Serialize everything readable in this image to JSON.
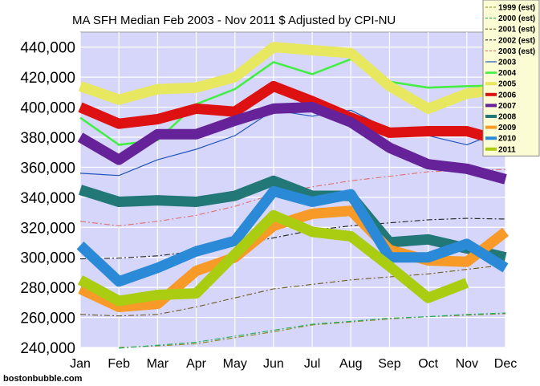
{
  "chart_data": {
    "type": "line",
    "title": "MA SFH Median Feb 2003 - Nov 2011 $ Adjusted by CPI-NU",
    "source": "bostonbubble.com",
    "categories": [
      "Jan",
      "Feb",
      "Mar",
      "Apr",
      "May",
      "Jun",
      "Jul",
      "Aug",
      "Sep",
      "Oct",
      "Nov",
      "Dec"
    ],
    "y_tick_labels": [
      "240,000",
      "260,000",
      "280,000",
      "300,000",
      "320,000",
      "340,000",
      "360,000",
      "380,000",
      "400,000",
      "420,000",
      "440,000"
    ],
    "ylim": [
      240000,
      450000
    ],
    "grid": true,
    "legend_position": "top-right",
    "series": [
      {
        "name": "1999 (est)",
        "color": "#8a8a1a",
        "style": "dash-dot-thin",
        "values": [
          null,
          240000,
          241000,
          242500,
          246500,
          250500,
          255000,
          257000,
          259000,
          260500,
          261500,
          262500
        ]
      },
      {
        "name": "2000 (est)",
        "color": "#20b060",
        "style": "dash-dot-thin",
        "values": [
          null,
          239500,
          241500,
          243500,
          247500,
          251500,
          255500,
          257500,
          259500,
          260500,
          262000,
          263000
        ]
      },
      {
        "name": "2001 (est)",
        "color": "#6b5a20",
        "style": "dash-dot-thin",
        "values": [
          262000,
          261000,
          262000,
          267000,
          273000,
          279000,
          282000,
          285000,
          287000,
          289000,
          292000,
          295000
        ]
      },
      {
        "name": "2002 (est)",
        "color": "#222222",
        "style": "dash-dot-thin",
        "values": [
          299000,
          299500,
          301000,
          304000,
          308000,
          313000,
          318000,
          321000,
          323000,
          325000,
          326000,
          325500
        ]
      },
      {
        "name": "2003 (est)",
        "color": "#e07070",
        "style": "dash-dot-thin",
        "values": [
          324000,
          321000,
          324000,
          328000,
          334000,
          342000,
          347000,
          351000,
          354000,
          357000,
          358000,
          358500
        ]
      },
      {
        "name": "2003",
        "color": "#2255bb",
        "style": "thin",
        "values": [
          356000,
          354500,
          365000,
          372000,
          381000,
          398000,
          394000,
          398000,
          385000,
          381000,
          375000,
          385000
        ]
      },
      {
        "name": "2004",
        "color": "#44ee44",
        "style": "medium",
        "values": [
          393000,
          375000,
          378000,
          402000,
          412000,
          430000,
          422000,
          432000,
          417000,
          413000,
          414000,
          414500
        ]
      },
      {
        "name": "2005",
        "color": "#e8e860",
        "style": "thick",
        "values": [
          414000,
          405000,
          412000,
          413000,
          420000,
          440000,
          438000,
          436000,
          414000,
          399000,
          409000,
          412000
        ]
      },
      {
        "name": "2006",
        "color": "#dd1111",
        "style": "thick",
        "values": [
          400000,
          389000,
          392000,
          399000,
          397000,
          414000,
          404000,
          393000,
          383000,
          384000,
          384000,
          377000
        ]
      },
      {
        "name": "2007",
        "color": "#662299",
        "style": "thick",
        "values": [
          380000,
          365000,
          382000,
          382000,
          391000,
          399000,
          400000,
          390000,
          373000,
          362000,
          359000,
          352000
        ]
      },
      {
        "name": "2008",
        "color": "#227777",
        "style": "thick",
        "values": [
          345000,
          337000,
          338000,
          337000,
          341000,
          351000,
          341000,
          341000,
          310000,
          312000,
          306000,
          300000
        ]
      },
      {
        "name": "2009",
        "color": "#f79a28",
        "style": "thick",
        "values": [
          279000,
          267000,
          269000,
          291000,
          300000,
          321000,
          329000,
          331000,
          305000,
          298000,
          297000,
          317000
        ]
      },
      {
        "name": "2010",
        "color": "#2b8ad8",
        "style": "thick",
        "values": [
          308000,
          284000,
          293000,
          304000,
          311000,
          344000,
          337000,
          342000,
          300000,
          300000,
          309000,
          293000
        ]
      },
      {
        "name": "2011",
        "color": "#aacc11",
        "style": "thick",
        "values": [
          285000,
          271000,
          275000,
          276000,
          302000,
          328000,
          317000,
          314000,
          294000,
          273000,
          283000,
          null
        ]
      }
    ]
  }
}
